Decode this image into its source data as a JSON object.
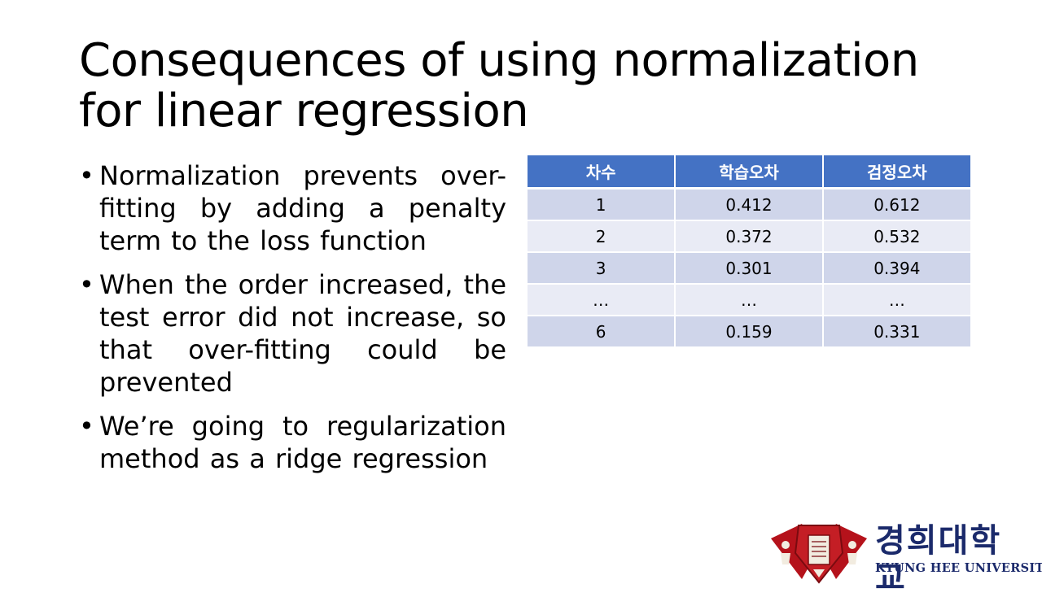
{
  "slide": {
    "title_line1": "Consequences of using normalization",
    "title_line2": "for linear regression"
  },
  "bullets": [
    "Normalization prevents over-fitting by adding a penalty term to the loss function",
    "When the order increased, the test error did not increase, so that over-fitting could be prevented",
    "We’re going to regularization method as a ridge regression"
  ],
  "table": {
    "headers": [
      "차수",
      "학습오차",
      "검정오차"
    ],
    "rows": [
      [
        "1",
        "0.412",
        "0.612"
      ],
      [
        "2",
        "0.372",
        "0.532"
      ],
      [
        "3",
        "0.301",
        "0.394"
      ],
      [
        "…",
        "…",
        "…"
      ],
      [
        "6",
        "0.159",
        "0.331"
      ]
    ]
  },
  "logo": {
    "name_ko": "경희대학교",
    "name_en": "KYUNG HEE UNIVERSITY",
    "emblem_icon": "university-emblem-icon"
  },
  "colors": {
    "table_header": "#4472c4",
    "row_odd": "#cfd5ea",
    "row_even": "#e9ebf5",
    "logo_text": "#1b2a6b",
    "emblem_red": "#b5121b"
  }
}
